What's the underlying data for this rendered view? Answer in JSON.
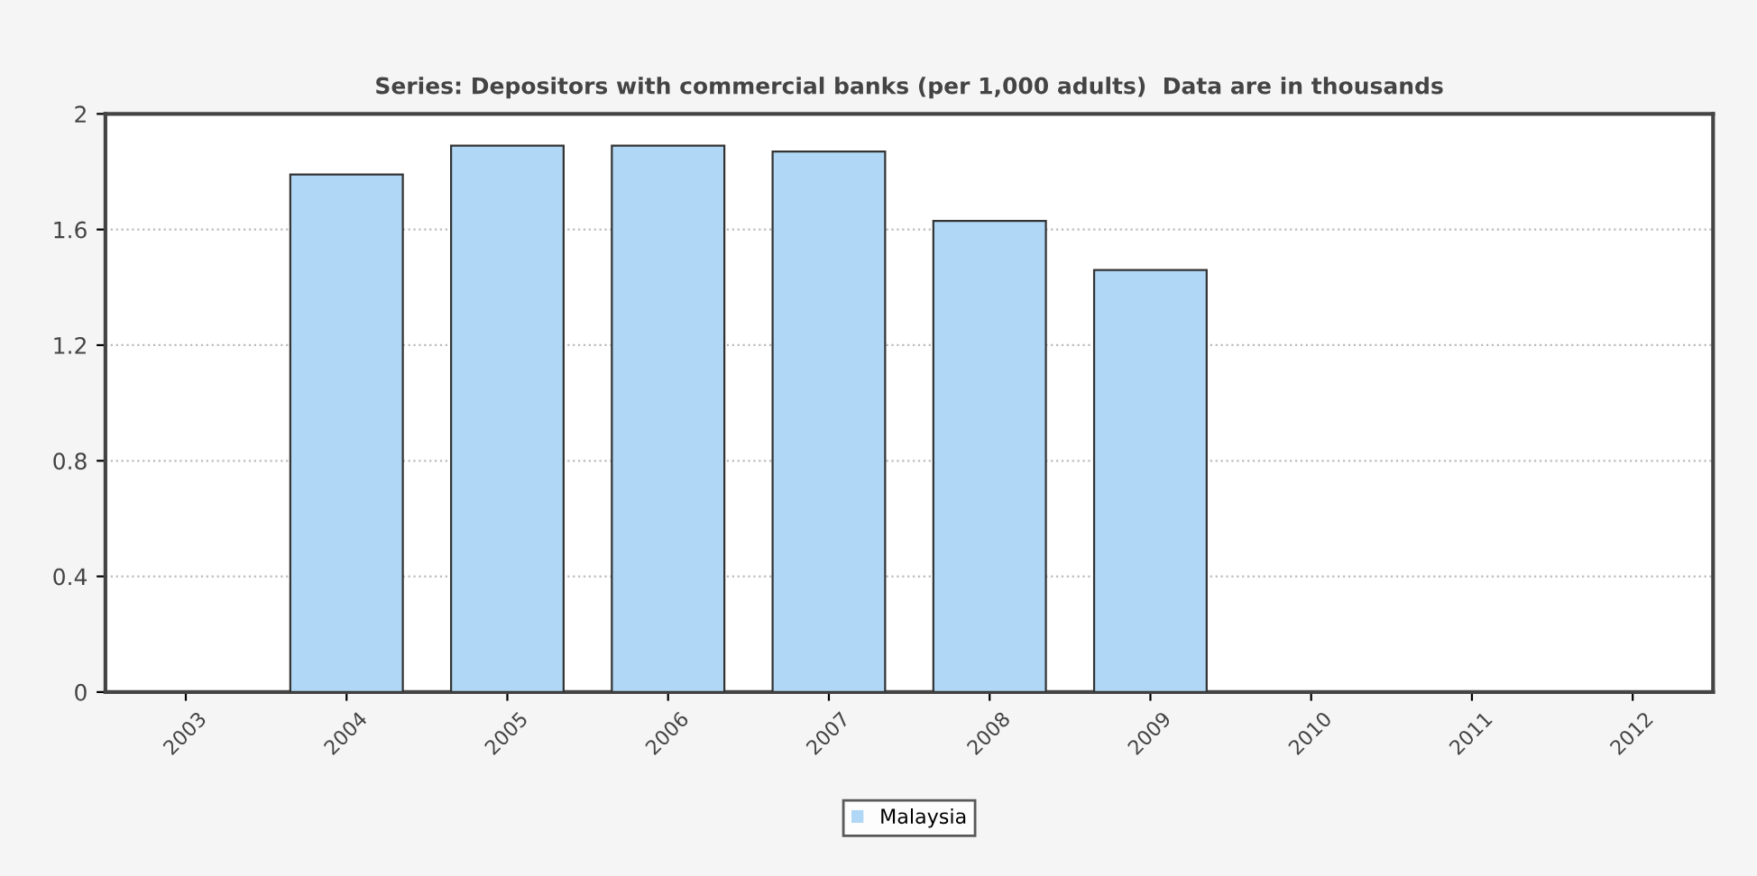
{
  "chart_data": {
    "type": "bar",
    "title": "Series: Depositors with commercial banks (per 1,000 adults)  Data are in thousands",
    "categories": [
      "2003",
      "2004",
      "2005",
      "2006",
      "2007",
      "2008",
      "2009",
      "2010",
      "2011",
      "2012"
    ],
    "series": [
      {
        "name": "Malaysia",
        "color": "#b0d8f6",
        "values": [
          null,
          1.79,
          1.89,
          1.89,
          1.87,
          1.63,
          1.46,
          null,
          null,
          null
        ]
      }
    ],
    "ylim": [
      0,
      2
    ],
    "yticks": [
      0,
      0.4,
      0.8,
      1.2,
      1.6,
      2
    ],
    "grid": "y",
    "legend": "bottom"
  }
}
